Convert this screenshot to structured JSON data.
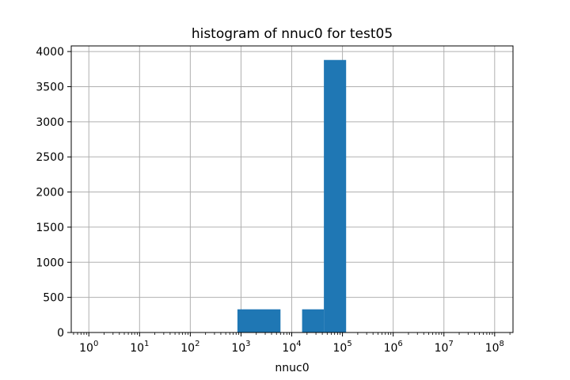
{
  "chart_data": {
    "type": "bar",
    "title": "histogram of nnuc0 for test05",
    "xlabel": "nnuc0",
    "ylabel": "",
    "x_scale": "log",
    "xlim": [
      0.45,
      230000000
    ],
    "ylim": [
      0,
      4080
    ],
    "grid": true,
    "bar_color": "#1f77b4",
    "x_ticks": [
      {
        "base": "10",
        "exp": "0",
        "value": 1
      },
      {
        "base": "10",
        "exp": "1",
        "value": 10
      },
      {
        "base": "10",
        "exp": "2",
        "value": 100
      },
      {
        "base": "10",
        "exp": "3",
        "value": 1000
      },
      {
        "base": "10",
        "exp": "4",
        "value": 10000
      },
      {
        "base": "10",
        "exp": "5",
        "value": 100000
      },
      {
        "base": "10",
        "exp": "6",
        "value": 1000000
      },
      {
        "base": "10",
        "exp": "7",
        "value": 10000000
      },
      {
        "base": "10",
        "exp": "8",
        "value": 100000000
      }
    ],
    "y_ticks": [
      "0",
      "500",
      "1000",
      "1500",
      "2000",
      "2500",
      "3000",
      "3500",
      "4000"
    ],
    "y_tick_values": [
      0,
      500,
      1000,
      1500,
      2000,
      2500,
      3000,
      3500,
      4000
    ],
    "bins": [
      {
        "x0": 850,
        "x1": 6000,
        "count": 330
      },
      {
        "x0": 16000,
        "x1": 43000,
        "count": 330
      },
      {
        "x0": 43000,
        "x1": 118000,
        "count": 3880
      }
    ]
  }
}
